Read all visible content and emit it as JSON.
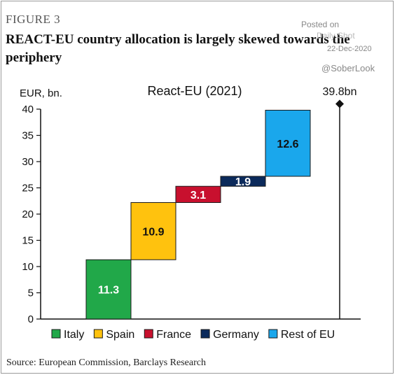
{
  "figure_label": "FIGURE 3",
  "title": "REACT-EU country allocation is largely skewed towards the periphery",
  "source": "Source: European Commission, Barclays Research",
  "watermark": {
    "posted": "Posted on",
    "site": "Daily Shot",
    "date": "22-Dec-2020",
    "handle": "@SoberLook"
  },
  "chart_data": {
    "type": "waterfall",
    "title": "React-EU (2021)",
    "ylabel": "EUR, bn.",
    "xlabel": "",
    "ylim": [
      0,
      40
    ],
    "yticks": [
      0,
      5,
      10,
      15,
      20,
      25,
      30,
      35,
      40
    ],
    "grid": false,
    "legend_position": "bottom",
    "total": {
      "value": 39.8,
      "label": "39.8bn"
    },
    "series": [
      {
        "name": "Italy",
        "value": 11.3,
        "label": "11.3",
        "color": "#21a849",
        "label_color": "#ffffff"
      },
      {
        "name": "Spain",
        "value": 10.9,
        "label": "10.9",
        "color": "#ffc20e",
        "label_color": "#111111"
      },
      {
        "name": "France",
        "value": 3.1,
        "label": "3.1",
        "color": "#c8102e",
        "label_color": "#ffffff"
      },
      {
        "name": "Germany",
        "value": 1.9,
        "label": "1.9",
        "color": "#0b2a5b",
        "label_color": "#ffffff"
      },
      {
        "name": "Rest of EU",
        "value": 12.6,
        "label": "12.6",
        "color": "#1aa7ec",
        "label_color": "#111111"
      }
    ]
  }
}
